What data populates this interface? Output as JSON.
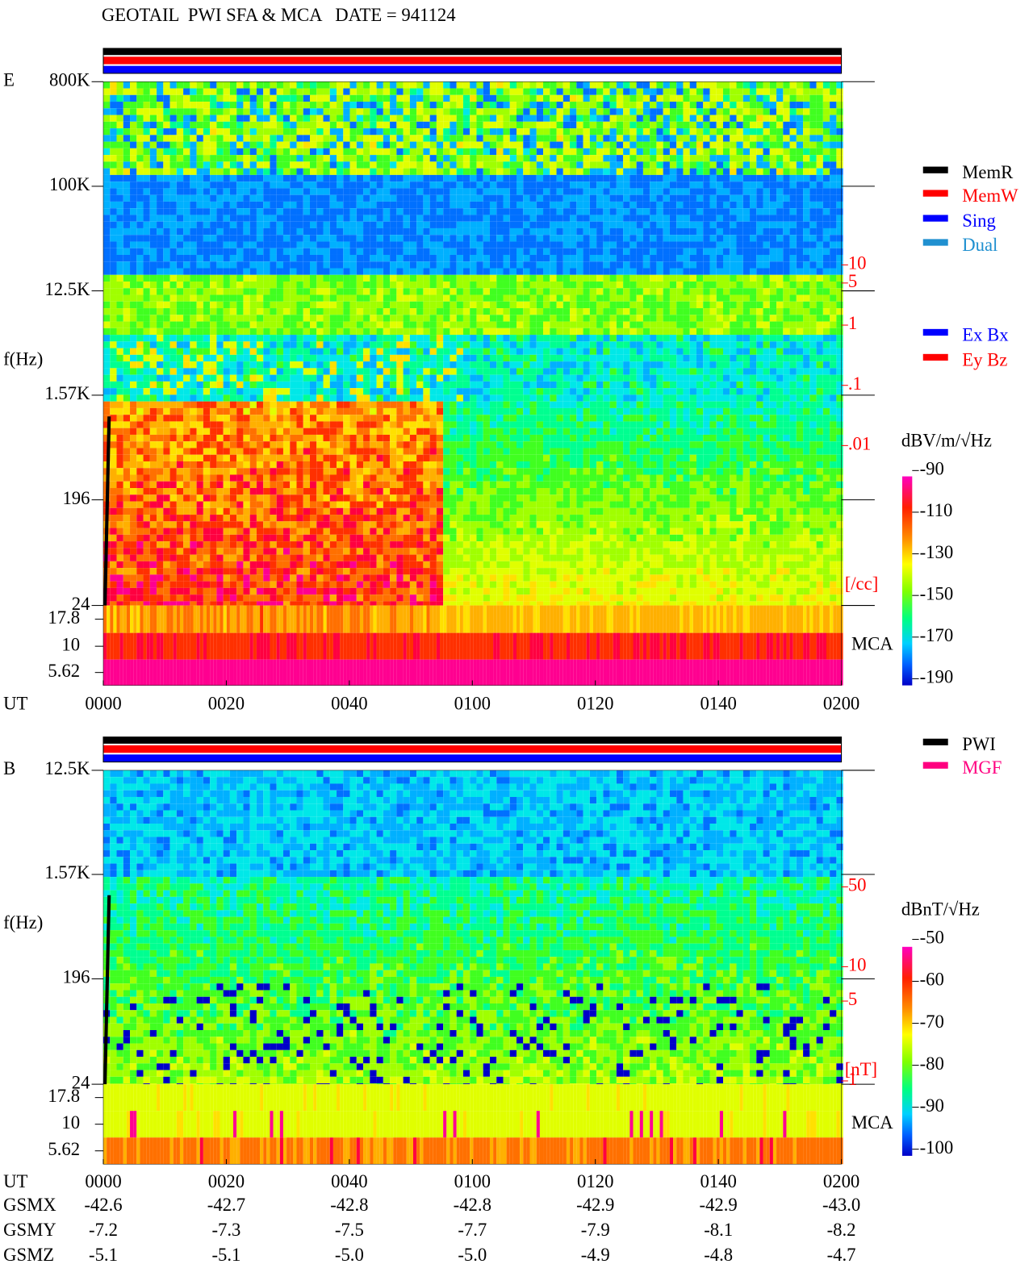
{
  "title": "GEOTAIL  PWI SFA & MCA   DATE = 941124",
  "chart_data": [
    {
      "type": "spectrogram",
      "panel_label": "E",
      "y_label": "f(Hz)",
      "x_label": "UT",
      "log_y": true,
      "ylim": [
        24,
        800000
      ],
      "yticks": [
        {
          "value": 800000,
          "label": "800K"
        },
        {
          "value": 100000,
          "label": "100K"
        },
        {
          "value": 12500,
          "label": "12.5K"
        },
        {
          "value": 1570,
          "label": "1.57K"
        },
        196,
        24
      ],
      "mca_label": "MCA",
      "mca_ticks": [
        17.8,
        10,
        5.62
      ],
      "xlim": [
        0,
        120
      ],
      "xticks": [
        {
          "value": 0,
          "label": "0000"
        },
        {
          "value": 20,
          "label": "0020"
        },
        {
          "value": 40,
          "label": "0040"
        },
        {
          "value": 60,
          "label": "0100"
        },
        {
          "value": 80,
          "label": "0120"
        },
        {
          "value": 100,
          "label": "0140"
        },
        {
          "value": 120,
          "label": "0200"
        }
      ],
      "y2_log": true,
      "y2lim": [
        0.01,
        10
      ],
      "y2ticks": [
        10,
        5,
        1,
        {
          "value": 0.1,
          "label": ".1"
        },
        {
          "value": 0.01,
          "label": ".01"
        }
      ],
      "y2_label": "[/cc]",
      "colorbar_label": "dBV/m/√Hz",
      "clim": [
        -190,
        -90
      ],
      "cticks": [
        -90,
        -110,
        -130,
        -150,
        -170,
        -190
      ],
      "legend": [
        {
          "name": "MemR",
          "color": "#000000"
        },
        {
          "name": "MemW",
          "color": "#ff0000"
        },
        {
          "name": "Sing",
          "color": "#0000ff"
        },
        {
          "name": "Dual",
          "color": "#2090d0"
        }
      ],
      "legend2": [
        {
          "name": "Ex Bx",
          "color": "#0000ff"
        },
        {
          "name": "Ey Bz",
          "color": "#ff0000"
        }
      ]
    },
    {
      "type": "spectrogram",
      "panel_label": "B",
      "y_label": "f(Hz)",
      "x_label": "UT",
      "log_y": true,
      "ylim": [
        24,
        12500
      ],
      "yticks": [
        {
          "value": 12500,
          "label": "12.5K"
        },
        {
          "value": 1570,
          "label": "1.57K"
        },
        196,
        24
      ],
      "mca_label": "MCA",
      "mca_ticks": [
        17.8,
        10,
        5.62
      ],
      "xlim": [
        0,
        120
      ],
      "xticks": [
        {
          "value": 0,
          "label": "0000"
        },
        {
          "value": 20,
          "label": "0020"
        },
        {
          "value": 40,
          "label": "0040"
        },
        {
          "value": 60,
          "label": "0100"
        },
        {
          "value": 80,
          "label": "0120"
        },
        {
          "value": 100,
          "label": "0140"
        },
        {
          "value": 120,
          "label": "0200"
        }
      ],
      "y2_log": true,
      "y2lim": [
        1,
        50
      ],
      "y2ticks": [
        50,
        10,
        5,
        1
      ],
      "y2_label": "[nT]",
      "colorbar_label": "dBnT/√Hz",
      "clim": [
        -100,
        -50
      ],
      "cticks": [
        -50,
        -60,
        -70,
        -80,
        -90,
        -100
      ],
      "legend": [
        {
          "name": "PWI",
          "color": "#000000"
        },
        {
          "name": "MGF",
          "color": "#ff0080"
        }
      ]
    }
  ],
  "orbit": {
    "rows": [
      {
        "label": "GSMX",
        "values": [
          "-42.6",
          "-42.7",
          "-42.8",
          "-42.8",
          "-42.9",
          "-42.9",
          "-43.0"
        ]
      },
      {
        "label": "GSMY",
        "values": [
          "-7.2",
          "-7.3",
          "-7.5",
          "-7.7",
          "-7.9",
          "-8.1",
          "-8.2"
        ]
      },
      {
        "label": "GSMZ",
        "values": [
          "-5.1",
          "-5.1",
          "-5.0",
          "-5.0",
          "-4.9",
          "-4.8",
          "-4.7"
        ]
      }
    ]
  }
}
